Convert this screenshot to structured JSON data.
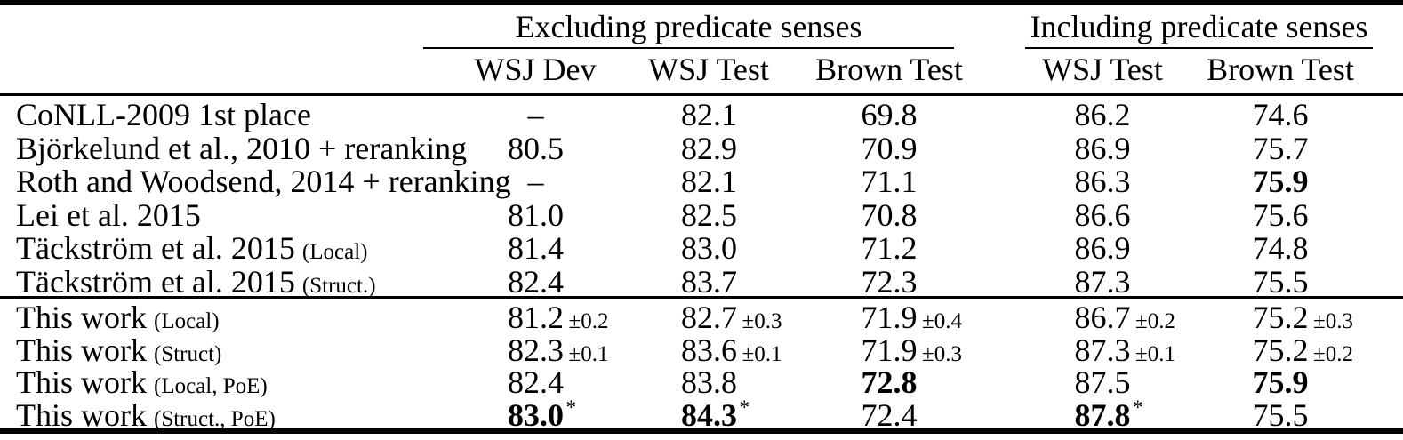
{
  "table": {
    "group_headers": [
      "Excluding predicate senses",
      "Including predicate senses"
    ],
    "column_headers": [
      "WSJ Dev",
      "WSJ Test",
      "Brown Test",
      "WSJ Test",
      "Brown Test"
    ],
    "sections": [
      {
        "rows": [
          {
            "label": "CoNLL-2009 1st place",
            "note": "",
            "cells": [
              {
                "value": "–"
              },
              {
                "value": "82.1"
              },
              {
                "value": "69.8"
              },
              {
                "value": "86.2"
              },
              {
                "value": "74.6"
              }
            ]
          },
          {
            "label": "Björkelund et al., 2010 + reranking",
            "note": "",
            "cells": [
              {
                "value": "80.5"
              },
              {
                "value": "82.9"
              },
              {
                "value": "70.9"
              },
              {
                "value": "86.9"
              },
              {
                "value": "75.7"
              }
            ]
          },
          {
            "label": "Roth and Woodsend, 2014 + reranking",
            "note": "",
            "cells": [
              {
                "value": "–"
              },
              {
                "value": "82.1"
              },
              {
                "value": "71.1"
              },
              {
                "value": "86.3"
              },
              {
                "value": "75.9",
                "bold": true
              }
            ]
          },
          {
            "label": "Lei et al. 2015",
            "note": "",
            "cells": [
              {
                "value": "81.0"
              },
              {
                "value": "82.5"
              },
              {
                "value": "70.8"
              },
              {
                "value": "86.6"
              },
              {
                "value": "75.6"
              }
            ]
          },
          {
            "label": "Täckström et al. 2015",
            "note": "(Local)",
            "cells": [
              {
                "value": "81.4"
              },
              {
                "value": "83.0"
              },
              {
                "value": "71.2"
              },
              {
                "value": "86.9"
              },
              {
                "value": "74.8"
              }
            ]
          },
          {
            "label": "Täckström et al. 2015",
            "note": "(Struct.)",
            "cells": [
              {
                "value": "82.4"
              },
              {
                "value": "83.7"
              },
              {
                "value": "72.3"
              },
              {
                "value": "87.3"
              },
              {
                "value": "75.5"
              }
            ]
          }
        ]
      },
      {
        "rows": [
          {
            "label": "This work",
            "note": "(Local)",
            "cells": [
              {
                "value": "81.2",
                "pm": "±0.2"
              },
              {
                "value": "82.7",
                "pm": "±0.3"
              },
              {
                "value": "71.9",
                "pm": "±0.4"
              },
              {
                "value": "86.7",
                "pm": "±0.2"
              },
              {
                "value": "75.2",
                "pm": "±0.3"
              }
            ]
          },
          {
            "label": "This work",
            "note": "(Struct)",
            "cells": [
              {
                "value": "82.3",
                "pm": "±0.1"
              },
              {
                "value": "83.6",
                "pm": "±0.1"
              },
              {
                "value": "71.9",
                "pm": "±0.3"
              },
              {
                "value": "87.3",
                "pm": "±0.1"
              },
              {
                "value": "75.2",
                "pm": "±0.2"
              }
            ]
          },
          {
            "label": "This work",
            "note": "(Local, PoE)",
            "cells": [
              {
                "value": "82.4"
              },
              {
                "value": "83.8"
              },
              {
                "value": "72.8",
                "bold": true
              },
              {
                "value": "87.5"
              },
              {
                "value": "75.9",
                "bold": true
              }
            ]
          },
          {
            "label": "This work",
            "note": "(Struct., PoE)",
            "cells": [
              {
                "value": "83.0",
                "bold": true,
                "star": "*"
              },
              {
                "value": "84.3",
                "bold": true,
                "star": "*"
              },
              {
                "value": "72.4"
              },
              {
                "value": "87.8",
                "bold": true,
                "star": "*"
              },
              {
                "value": "75.5"
              }
            ]
          }
        ]
      }
    ]
  }
}
